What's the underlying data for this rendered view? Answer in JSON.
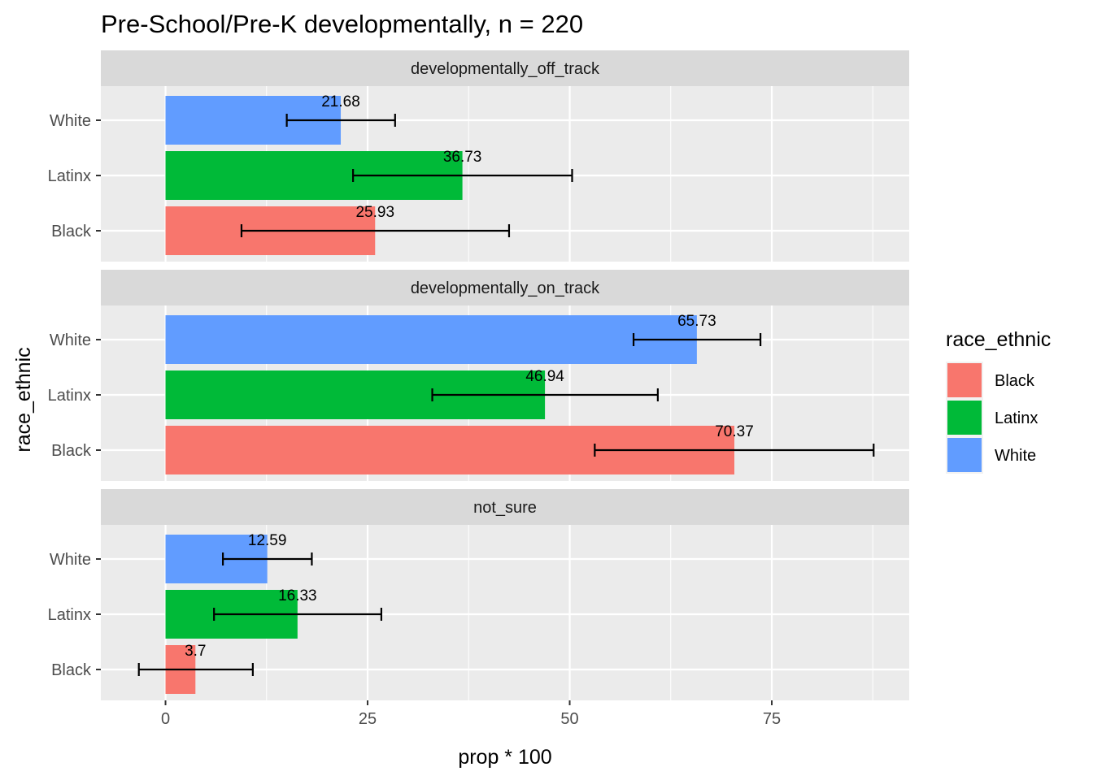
{
  "chart_data": {
    "type": "bar",
    "orientation": "horizontal",
    "title": "Pre-School/Pre-K developmentally, n = 220",
    "xlabel": "prop * 100",
    "ylabel": "race_ethnic",
    "xlim": [
      -8,
      92
    ],
    "x_ticks": [
      0,
      25,
      50,
      75
    ],
    "categories": [
      "Black",
      "Latinx",
      "White"
    ],
    "legend": {
      "title": "race_ethnic",
      "position": "right",
      "entries": [
        {
          "label": "Black",
          "color": "#F8766D"
        },
        {
          "label": "Latinx",
          "color": "#00BA38"
        },
        {
          "label": "White",
          "color": "#619CFF"
        }
      ]
    },
    "colors": {
      "Black": "#F8766D",
      "Latinx": "#00BA38",
      "White": "#619CFF"
    },
    "grid": true,
    "facets": [
      {
        "label": "developmentally_off_track",
        "bars": [
          {
            "category": "White",
            "value": 21.68,
            "label": "21.68",
            "err_low": 15.0,
            "err_high": 28.4
          },
          {
            "category": "Latinx",
            "value": 36.73,
            "label": "36.73",
            "err_low": 23.2,
            "err_high": 50.3
          },
          {
            "category": "Black",
            "value": 25.93,
            "label": "25.93",
            "err_low": 9.4,
            "err_high": 42.5
          }
        ]
      },
      {
        "label": "developmentally_on_track",
        "bars": [
          {
            "category": "White",
            "value": 65.73,
            "label": "65.73",
            "err_low": 57.9,
            "err_high": 73.6
          },
          {
            "category": "Latinx",
            "value": 46.94,
            "label": "46.94",
            "err_low": 33.0,
            "err_high": 60.9
          },
          {
            "category": "Black",
            "value": 70.37,
            "label": "70.37",
            "err_low": 53.1,
            "err_high": 87.6
          }
        ]
      },
      {
        "label": "not_sure",
        "bars": [
          {
            "category": "White",
            "value": 12.59,
            "label": "12.59",
            "err_low": 7.1,
            "err_high": 18.1
          },
          {
            "category": "Latinx",
            "value": 16.33,
            "label": "16.33",
            "err_low": 6.0,
            "err_high": 26.7
          },
          {
            "category": "Black",
            "value": 3.7,
            "label": "3.7",
            "err_low": -3.3,
            "err_high": 10.8
          }
        ]
      }
    ]
  }
}
